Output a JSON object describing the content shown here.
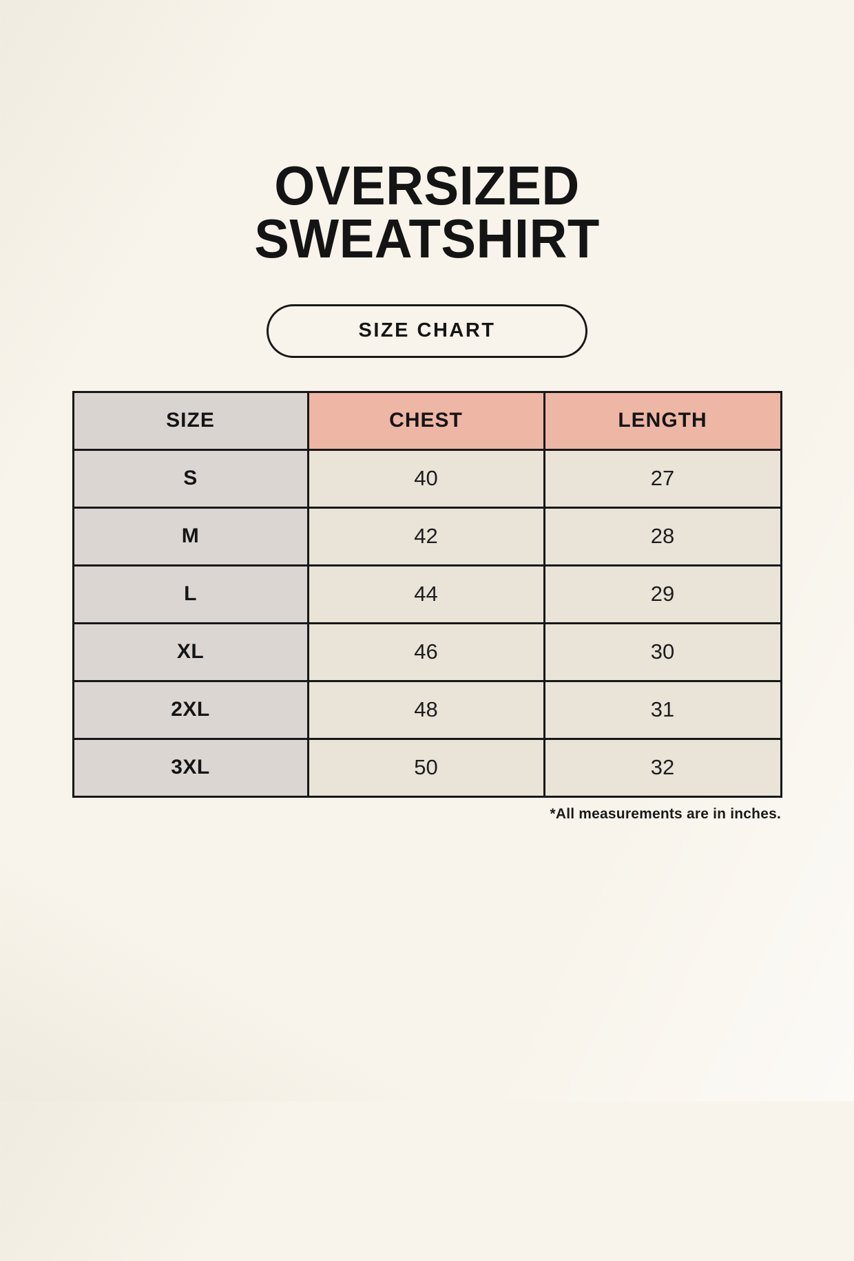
{
  "header": {
    "title": "OVERSIZED SWEATSHIRT",
    "badge_label": "SIZE CHART"
  },
  "table": {
    "headers": [
      "SIZE",
      "CHEST",
      "LENGTH"
    ],
    "rows": [
      {
        "size": "S",
        "chest": "40",
        "length": "27"
      },
      {
        "size": "M",
        "chest": "42",
        "length": "28"
      },
      {
        "size": "L",
        "chest": "44",
        "length": "29"
      },
      {
        "size": "XL",
        "chest": "46",
        "length": "30"
      },
      {
        "size": "2XL",
        "chest": "48",
        "length": "31"
      },
      {
        "size": "3XL",
        "chest": "50",
        "length": "32"
      }
    ]
  },
  "footnote": "*All measurements are in inches.",
  "colors": {
    "background": "#f8f4eb",
    "accent_salmon": "#eeb6a4",
    "neutral_gray": "#dad4d0",
    "cell_cream": "#e9e3d8",
    "border": "#171717",
    "text": "#151515"
  }
}
